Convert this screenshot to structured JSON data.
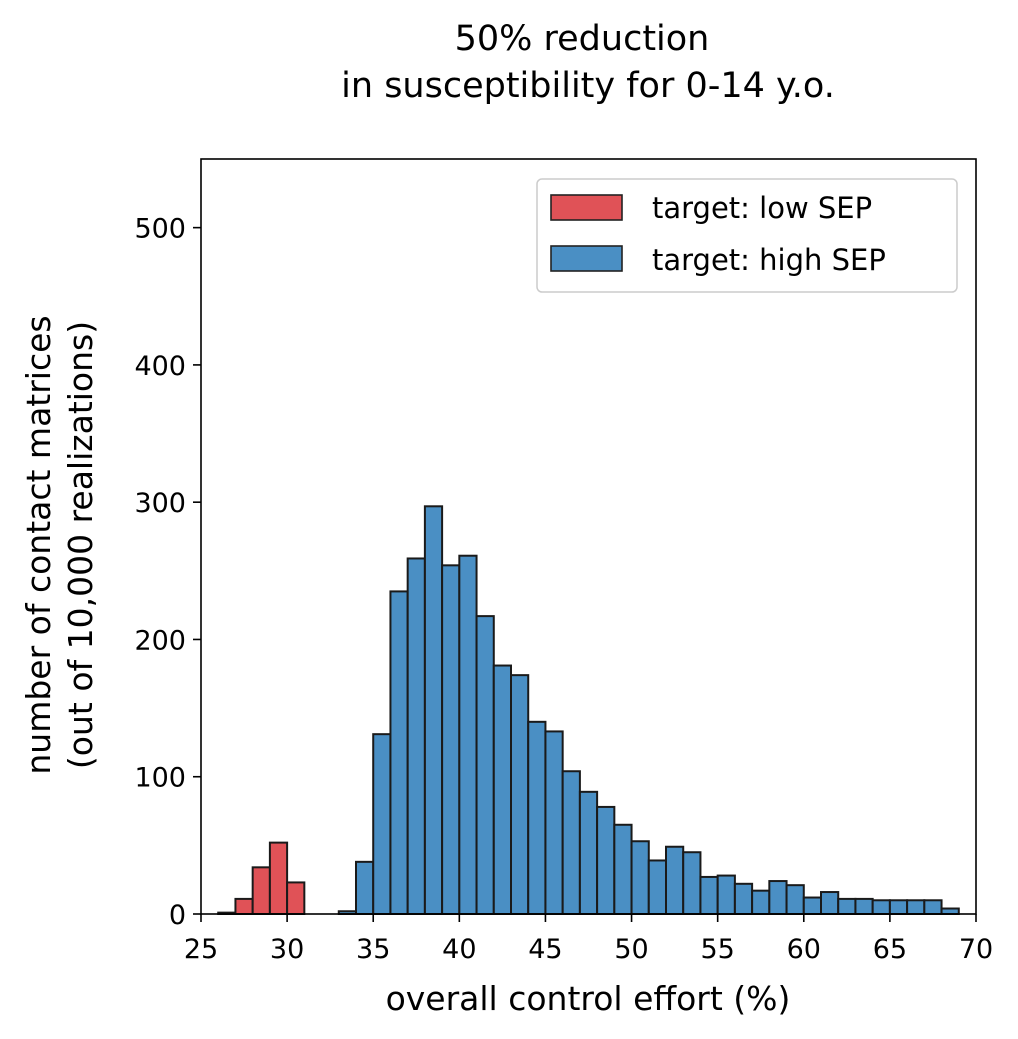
{
  "chart_data": {
    "type": "bar",
    "title_lines": [
      "50% reduction",
      "in susceptibility for 0-14 y.o."
    ],
    "xlabel": "overall control effort (%)",
    "ylabel_lines": [
      "number of contact matrices",
      "(out of 10,000 realizations)"
    ],
    "xlim": [
      25,
      70
    ],
    "ylim": [
      0,
      550
    ],
    "xticks": [
      25,
      30,
      35,
      40,
      45,
      50,
      55,
      60,
      65,
      70
    ],
    "yticks": [
      0,
      100,
      200,
      300,
      400,
      500
    ],
    "grid": false,
    "legend_position": "top-right",
    "bin_width": 1,
    "series": [
      {
        "name": "target: low SEP",
        "color": "#e05257",
        "bins": [
          {
            "x": 26.5,
            "count": 1
          },
          {
            "x": 27.5,
            "count": 11
          },
          {
            "x": 28.5,
            "count": 34
          },
          {
            "x": 29.5,
            "count": 52
          },
          {
            "x": 30.5,
            "count": 23
          }
        ]
      },
      {
        "name": "target: high SEP",
        "color": "#4a8fc4",
        "bins": [
          {
            "x": 33.5,
            "count": 2
          },
          {
            "x": 34.5,
            "count": 38
          },
          {
            "x": 35.5,
            "count": 131
          },
          {
            "x": 36.5,
            "count": 235
          },
          {
            "x": 37.5,
            "count": 259
          },
          {
            "x": 38.5,
            "count": 297
          },
          {
            "x": 39.5,
            "count": 254
          },
          {
            "x": 40.5,
            "count": 261
          },
          {
            "x": 41.5,
            "count": 217
          },
          {
            "x": 42.5,
            "count": 181
          },
          {
            "x": 43.5,
            "count": 174
          },
          {
            "x": 44.5,
            "count": 140
          },
          {
            "x": 45.5,
            "count": 133
          },
          {
            "x": 46.5,
            "count": 104
          },
          {
            "x": 47.5,
            "count": 89
          },
          {
            "x": 48.5,
            "count": 78
          },
          {
            "x": 49.5,
            "count": 65
          },
          {
            "x": 50.5,
            "count": 53
          },
          {
            "x": 51.5,
            "count": 39
          },
          {
            "x": 52.5,
            "count": 49
          },
          {
            "x": 53.5,
            "count": 45
          },
          {
            "x": 54.5,
            "count": 27
          },
          {
            "x": 55.5,
            "count": 28
          },
          {
            "x": 56.5,
            "count": 22
          },
          {
            "x": 57.5,
            "count": 17
          },
          {
            "x": 58.5,
            "count": 24
          },
          {
            "x": 59.5,
            "count": 21
          },
          {
            "x": 60.5,
            "count": 12
          },
          {
            "x": 61.5,
            "count": 16
          },
          {
            "x": 62.5,
            "count": 11
          },
          {
            "x": 63.5,
            "count": 11
          },
          {
            "x": 64.5,
            "count": 10
          },
          {
            "x": 65.5,
            "count": 10
          },
          {
            "x": 66.5,
            "count": 10
          },
          {
            "x": 67.5,
            "count": 10
          },
          {
            "x": 68.5,
            "count": 4
          }
        ]
      }
    ]
  }
}
